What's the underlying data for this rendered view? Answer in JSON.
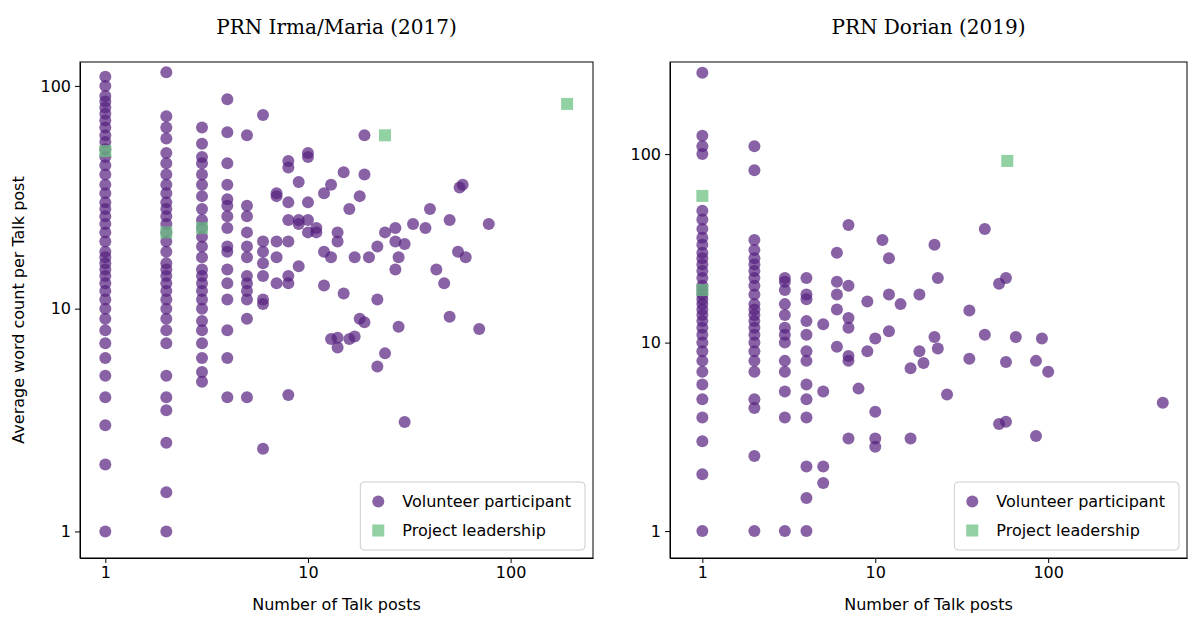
{
  "chart_data": [
    {
      "type": "scatter",
      "title": "PRN Irma/Maria (2017)",
      "x_label": "Number of Talk posts",
      "y_label": "Average word count per Talk post",
      "log": true,
      "legend": "lower right",
      "xlim": [
        0.75,
        255
      ],
      "ylim": [
        0.76,
        128
      ],
      "xticks": [
        1,
        10,
        100
      ],
      "yticks": [
        1,
        10,
        100
      ],
      "series": [
        {
          "name": "Volunteer participant",
          "color": "#55207f",
          "marker": "circle",
          "x": [
            1,
            1,
            1,
            1,
            1,
            1,
            1,
            1,
            1,
            1,
            1,
            1,
            1,
            1,
            1,
            1,
            1,
            1,
            1,
            1,
            1,
            1,
            1,
            1,
            1,
            1,
            1,
            1,
            1,
            1,
            1,
            1,
            1,
            1,
            1,
            1,
            1,
            1,
            1,
            1,
            2,
            2,
            2,
            2,
            2,
            2,
            2,
            2,
            2,
            2,
            2,
            2,
            2,
            2,
            2,
            2,
            2,
            2,
            2,
            2,
            2,
            2,
            2,
            2,
            2,
            2,
            2,
            2,
            2,
            2,
            2,
            2,
            3,
            3,
            3,
            3,
            3,
            3,
            3,
            3,
            3,
            3,
            3,
            3,
            3,
            3,
            3,
            3,
            3,
            3,
            3,
            3,
            3,
            3,
            3,
            3,
            3,
            4,
            4,
            4,
            4,
            4,
            4,
            4,
            4,
            4,
            4,
            4,
            4,
            4,
            4,
            4,
            4,
            5,
            5,
            5,
            5,
            5,
            5,
            5,
            5,
            5,
            5,
            5,
            5,
            6,
            6,
            6,
            6,
            6,
            6,
            6,
            6,
            7,
            7,
            7,
            7,
            7,
            8,
            8,
            8,
            8,
            8,
            8,
            8,
            8,
            9,
            9,
            9,
            9,
            10,
            10,
            10,
            10,
            10,
            11,
            11,
            12,
            12,
            12,
            13,
            13,
            13,
            14,
            14,
            14,
            14,
            15,
            15,
            16,
            16,
            17,
            17,
            18,
            18,
            19,
            19,
            19,
            20,
            22,
            22,
            22,
            24,
            24,
            27,
            27,
            27,
            28,
            28,
            30,
            30,
            33,
            38,
            40,
            43,
            47,
            50,
            50,
            55,
            56,
            58,
            60,
            70,
            78
          ],
          "values": [
            1,
            2,
            3,
            4,
            5,
            6,
            7,
            8,
            9,
            10,
            11,
            12,
            13,
            14,
            15,
            16,
            17,
            18,
            20,
            22,
            24,
            26,
            28,
            30,
            33,
            36,
            40,
            44,
            48,
            52,
            56,
            60,
            65,
            70,
            75,
            80,
            85,
            90,
            100,
            110,
            1,
            1.5,
            2.5,
            3.5,
            4,
            5,
            7,
            8,
            9,
            10,
            11,
            12,
            13,
            14,
            15,
            16,
            18,
            20,
            22,
            24,
            26,
            28,
            30,
            33,
            36,
            40,
            45,
            50,
            58,
            65,
            73,
            115,
            4.7,
            5.2,
            6,
            7,
            8,
            8.8,
            10,
            11,
            12,
            13,
            14,
            15,
            17,
            19,
            21,
            23,
            25,
            28,
            32,
            36,
            40,
            45,
            48,
            55,
            65,
            4,
            6,
            8,
            11,
            13,
            15,
            18,
            19,
            23,
            26,
            29,
            31,
            36,
            45,
            62,
            87,
            4,
            9,
            11,
            12,
            13,
            14,
            17,
            19,
            22,
            26,
            29,
            60,
            2.35,
            10.5,
            11,
            14,
            16,
            18,
            20,
            74,
            13,
            17,
            20,
            32,
            33,
            4.1,
            13,
            14,
            20,
            25,
            30,
            43,
            46,
            15.5,
            24,
            25,
            37,
            22,
            25,
            30,
            48,
            50,
            22,
            23,
            12.7,
            18,
            33,
            7.3,
            17,
            36,
            6.7,
            7.4,
            20,
            22,
            11.7,
            41,
            7.3,
            28,
            7.5,
            17,
            9,
            32,
            8.7,
            40,
            60,
            17,
            5.5,
            11,
            19,
            6.3,
            22,
            15,
            20,
            23,
            8.3,
            17,
            3.1,
            19.5,
            24,
            23,
            28,
            15,
            13,
            9.2,
            25,
            18,
            35,
            36,
            17,
            8.1,
            24
          ]
        },
        {
          "name": "Project leadership",
          "color": "#6cc283",
          "marker": "square",
          "x": [
            1,
            2,
            3,
            24,
            190
          ],
          "values": [
            51,
            22,
            23,
            60,
            83
          ]
        }
      ]
    },
    {
      "type": "scatter",
      "title": "PRN Dorian (2019)",
      "x_label": "Number of Talk posts",
      "log": true,
      "legend": "lower right",
      "xlim": [
        0.65,
        635
      ],
      "ylim": [
        0.72,
        308
      ],
      "xticks": [
        1,
        10,
        100
      ],
      "yticks": [
        1,
        10,
        100
      ],
      "series": [
        {
          "name": "Volunteer participant",
          "color": "#55207f",
          "marker": "circle",
          "x": [
            1,
            1,
            1,
            1,
            1,
            1,
            1,
            1,
            1,
            1,
            1,
            1,
            1,
            1,
            1,
            1,
            1,
            1,
            1,
            1,
            1,
            1,
            1,
            1,
            1,
            1,
            1,
            1,
            1,
            1,
            1,
            1,
            1,
            1,
            2,
            2,
            2,
            2,
            2,
            2,
            2,
            2,
            2,
            2,
            2,
            2,
            2,
            2,
            2,
            2,
            2,
            2,
            2,
            2,
            2,
            2,
            2,
            2,
            3,
            3,
            3,
            3,
            3,
            3,
            3,
            3,
            3,
            3,
            3,
            3,
            3,
            4,
            4,
            4,
            4,
            4,
            4,
            4,
            4,
            4,
            4,
            4,
            4,
            4,
            5,
            5,
            5,
            5,
            6,
            6,
            6,
            6,
            6,
            7,
            7,
            7,
            7,
            7,
            7,
            7,
            8,
            9,
            9,
            10,
            10,
            10,
            10,
            11,
            12,
            12,
            12,
            14,
            16,
            16,
            18,
            18,
            19,
            22,
            22,
            23,
            23,
            26,
            35,
            35,
            43,
            43,
            52,
            52,
            57,
            57,
            57,
            65,
            85,
            85,
            92,
            100,
            460
          ],
          "values": [
            1,
            2,
            3,
            4,
            5,
            6,
            7,
            8,
            9,
            10,
            11,
            12,
            13,
            14,
            15,
            16,
            17,
            18,
            19,
            20,
            22,
            24,
            26,
            28,
            30,
            33,
            36,
            40,
            45,
            50,
            100,
            110,
            125,
            270,
            1,
            2.5,
            4.5,
            5,
            7,
            8,
            9,
            10,
            11,
            12,
            13,
            14,
            15,
            16,
            18,
            20,
            22,
            24,
            26,
            28,
            31,
            35,
            82,
            110,
            1,
            4,
            5.5,
            7,
            8,
            10,
            11,
            12,
            14,
            16,
            19,
            21,
            22,
            1,
            1.5,
            2.2,
            4,
            5,
            6,
            8,
            9,
            11,
            13,
            17,
            18,
            22,
            1.8,
            2.2,
            5.5,
            12.5,
            9.5,
            15,
            18,
            21,
            30,
            3.1,
            8,
            8.5,
            12,
            13.5,
            20,
            42,
            5.7,
            9,
            16.5,
            2.8,
            3.1,
            4.3,
            10.5,
            35,
            11.5,
            18,
            28,
            16,
            3.1,
            7.3,
            9,
            18,
            7.8,
            10.7,
            33,
            9.3,
            22,
            5.3,
            8.2,
            14.8,
            11,
            40,
            3.7,
            20.5,
            3.8,
            7.9,
            22,
            10.7,
            3.2,
            8,
            10.5,
            7,
            4.8
          ]
        },
        {
          "name": "Project leadership",
          "color": "#6cc283",
          "marker": "square",
          "x": [
            1,
            1,
            58
          ],
          "values": [
            60,
            19,
            92
          ]
        }
      ]
    }
  ]
}
